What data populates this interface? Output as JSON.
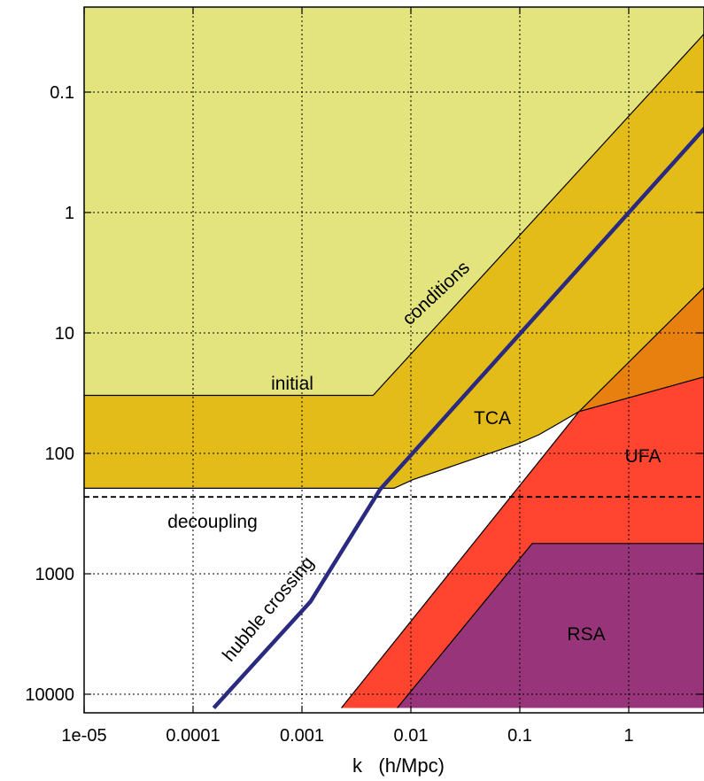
{
  "chart_data": {
    "type": "area",
    "xlabel": "k   (h/Mpc)",
    "x_scale": "log",
    "y_scale": "log",
    "y_inverted": true,
    "xlim": [
      1e-05,
      6
    ],
    "ylim": [
      0.02,
      13000
    ],
    "grid": true,
    "x_ticks": [
      {
        "value": 1e-05,
        "label": "1e-05"
      },
      {
        "value": 0.0001,
        "label": "0.0001"
      },
      {
        "value": 0.001,
        "label": "0.001"
      },
      {
        "value": 0.01,
        "label": "0.01"
      },
      {
        "value": 0.1,
        "label": "0.1"
      },
      {
        "value": 1,
        "label": "1"
      }
    ],
    "y_ticks": [
      {
        "value": 0.1,
        "label": "0.1"
      },
      {
        "value": 1,
        "label": "1"
      },
      {
        "value": 10,
        "label": "10"
      },
      {
        "value": 100,
        "label": "100"
      },
      {
        "value": 1000,
        "label": "1000"
      },
      {
        "value": 10000,
        "label": "10000"
      }
    ],
    "colors": {
      "initial": "#e4e47e",
      "tca": "#e4bc1a",
      "ufa": "#ff4530",
      "overlap": "#e88010",
      "rsa": "#98357a",
      "hubble": "#2a2a80"
    },
    "regions": [
      {
        "name": "initial",
        "label": "initial",
        "points": [
          [
            1e-05,
            0.02
          ],
          [
            6,
            0.02
          ],
          [
            6,
            0.027
          ],
          [
            0.0045,
            33
          ],
          [
            1e-05,
            33
          ]
        ]
      },
      {
        "name": "tca",
        "label": "TCA",
        "points": [
          [
            1e-05,
            33
          ],
          [
            0.0045,
            33
          ],
          [
            6,
            0.027
          ],
          [
            6,
            3.5
          ],
          [
            0.35,
            45
          ],
          [
            0.15,
            70
          ],
          [
            0.1,
            82
          ],
          [
            0.0105,
            165
          ],
          [
            0.007,
            195
          ],
          [
            1e-05,
            195
          ]
        ]
      },
      {
        "name": "ufa",
        "label": "UFA",
        "points": [
          [
            6,
            22
          ],
          [
            6,
            13000
          ],
          [
            0.0023,
            13000
          ],
          [
            0.35,
            45
          ]
        ]
      },
      {
        "name": "overlap",
        "label": "",
        "points": [
          [
            0.35,
            45
          ],
          [
            6,
            3.5
          ],
          [
            6,
            22
          ]
        ]
      },
      {
        "name": "rsa",
        "label": "RSA",
        "points": [
          [
            0.13,
            560
          ],
          [
            6,
            560
          ],
          [
            6,
            13000
          ],
          [
            0.0075,
            13000
          ]
        ]
      }
    ],
    "boundary_initial": [
      [
        1e-05,
        33
      ],
      [
        0.0045,
        33
      ],
      [
        6,
        0.027
      ]
    ],
    "boundary_tca": [
      [
        1e-05,
        195
      ],
      [
        0.007,
        195
      ],
      [
        0.0105,
        165
      ],
      [
        0.1,
        82
      ],
      [
        0.15,
        70
      ],
      [
        0.35,
        45
      ],
      [
        6,
        3.5
      ]
    ],
    "boundary_ufa": [
      [
        0.0023,
        13000
      ],
      [
        0.35,
        45
      ],
      [
        6,
        22
      ]
    ],
    "boundary_rsa": [
      [
        0.0075,
        13000
      ],
      [
        0.13,
        560
      ],
      [
        6,
        560
      ]
    ],
    "decoupling_tau": 230,
    "hubble_crossing": [
      [
        0.000155,
        13000
      ],
      [
        0.0012,
        1700
      ],
      [
        0.0052,
        200
      ],
      [
        6,
        0.165
      ]
    ],
    "labels": {
      "initial": "initial",
      "conditions": "conditions",
      "tca": "TCA",
      "ufa": "UFA",
      "rsa": "RSA",
      "decoupling": "decoupling",
      "hubble": "hubble crossing"
    }
  }
}
